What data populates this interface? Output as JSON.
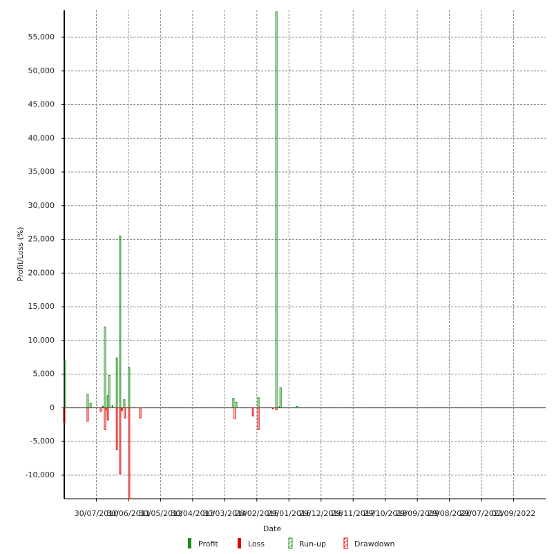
{
  "chart_data": {
    "type": "bar",
    "x_label": "Date",
    "y_label": "Profit/Loss (%)",
    "xlim": [
      0,
      15
    ],
    "xticks": [
      {
        "value": 1,
        "label": "30/07/2010"
      },
      {
        "value": 2,
        "label": "30/06/2011"
      },
      {
        "value": 3,
        "label": "30/05/2012"
      },
      {
        "value": 4,
        "label": "30/04/2013"
      },
      {
        "value": 5,
        "label": "30/03/2014"
      },
      {
        "value": 6,
        "label": "28/02/2015"
      },
      {
        "value": 7,
        "label": "29/01/2016"
      },
      {
        "value": 8,
        "label": "29/12/2016"
      },
      {
        "value": 9,
        "label": "29/11/2017"
      },
      {
        "value": 10,
        "label": "29/10/2018"
      },
      {
        "value": 11,
        "label": "29/09/2019"
      },
      {
        "value": 12,
        "label": "29/08/2020"
      },
      {
        "value": 13,
        "label": "29/07/2021"
      },
      {
        "value": 14,
        "label": "02/09/2022"
      }
    ],
    "ylim": [
      -13500,
      59000
    ],
    "yticks": [
      {
        "value": -10000,
        "label": "-10,000"
      },
      {
        "value": -5000,
        "label": "-5,000"
      },
      0,
      {
        "value": 5000,
        "label": "5,000"
      },
      {
        "value": 10000,
        "label": "10,000"
      },
      {
        "value": 15000,
        "label": "15,000"
      },
      {
        "value": 20000,
        "label": "20,000"
      },
      {
        "value": 25000,
        "label": "25,000"
      },
      {
        "value": 30000,
        "label": "30,000"
      },
      {
        "value": 35000,
        "label": "35,000"
      },
      {
        "value": 40000,
        "label": "40,000"
      },
      {
        "value": 45000,
        "label": "45,000"
      },
      {
        "value": 50000,
        "label": "50,000"
      },
      {
        "value": 55000,
        "label": "55,000"
      }
    ],
    "grid": true,
    "series": [
      {
        "name": "Profit",
        "color": "#1a8c1a",
        "hatched": false,
        "x": [
          1.2,
          1.5,
          6.7
        ],
        "values": [
          300,
          400,
          200
        ]
      },
      {
        "name": "Loss",
        "color": "#e00000",
        "hatched": false,
        "x": [
          1.3,
          1.8,
          6.5
        ],
        "values": [
          -400,
          -500,
          -200
        ]
      },
      {
        "name": "Run-up",
        "color": "#1a8c1a",
        "hatched": true,
        "x": [
          0.02,
          0.73,
          0.82,
          1.27,
          1.36,
          1.4,
          1.64,
          1.74,
          1.87,
          2.02,
          5.27,
          5.36,
          6.05,
          6.61,
          6.74,
          7.25
        ],
        "values": [
          7000,
          2000,
          700,
          12000,
          1800,
          4800,
          7400,
          25500,
          1200,
          6000,
          1400,
          800,
          1500,
          58800,
          3000,
          200
        ]
      },
      {
        "name": "Drawdown",
        "color": "#e00000",
        "hatched": true,
        "x": [
          0.0,
          0.73,
          1.14,
          1.27,
          1.36,
          1.64,
          1.74,
          1.89,
          2.02,
          2.37,
          5.31,
          5.88,
          6.05,
          6.61
        ],
        "values": [
          -2200,
          -2000,
          -500,
          -3200,
          -1800,
          -6200,
          -9800,
          -1500,
          -13500,
          -1500,
          -1600,
          -1200,
          -3200,
          -300
        ]
      }
    ]
  }
}
